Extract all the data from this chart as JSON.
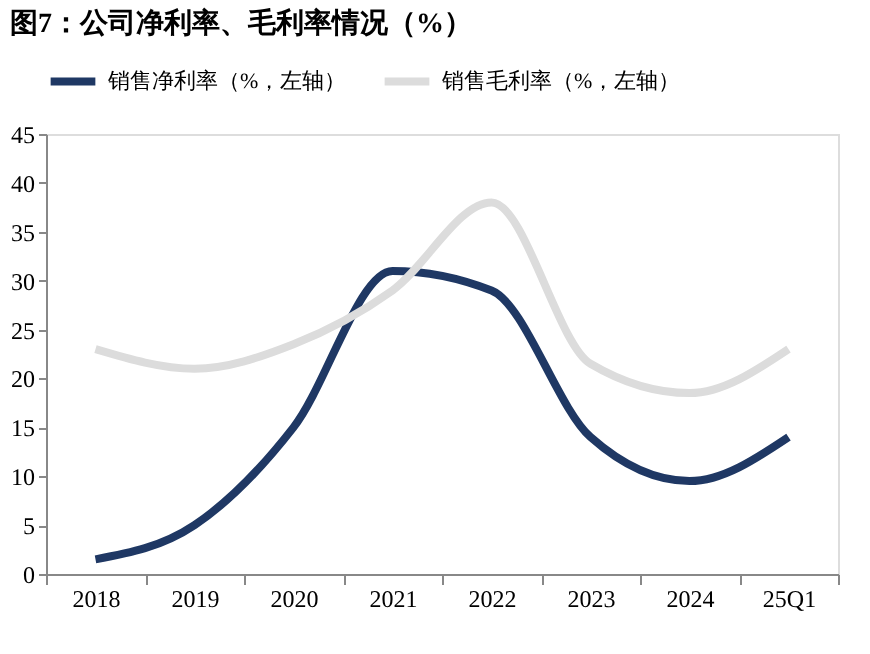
{
  "chart_data": {
    "type": "line",
    "title": "图7：公司净利率、毛利率情况（%）",
    "categories": [
      "2018",
      "2019",
      "2020",
      "2021",
      "2022",
      "2023",
      "2024",
      "25Q1"
    ],
    "series": [
      {
        "name": "销售净利率（%，左轴）",
        "color": "#1f3864",
        "values": [
          1.5,
          5,
          15,
          31,
          29,
          14,
          9.5,
          14
        ]
      },
      {
        "name": "销售毛利率（%，左轴）",
        "color": "#dcdcdc",
        "values": [
          23,
          21,
          23.5,
          29,
          38,
          21.5,
          18.5,
          23
        ]
      }
    ],
    "ylim": [
      0,
      45
    ],
    "yticks": [
      0,
      5,
      10,
      15,
      20,
      25,
      30,
      35,
      40,
      45
    ],
    "grid": false,
    "legend": "top",
    "marker": "none",
    "line_style": "solid"
  }
}
